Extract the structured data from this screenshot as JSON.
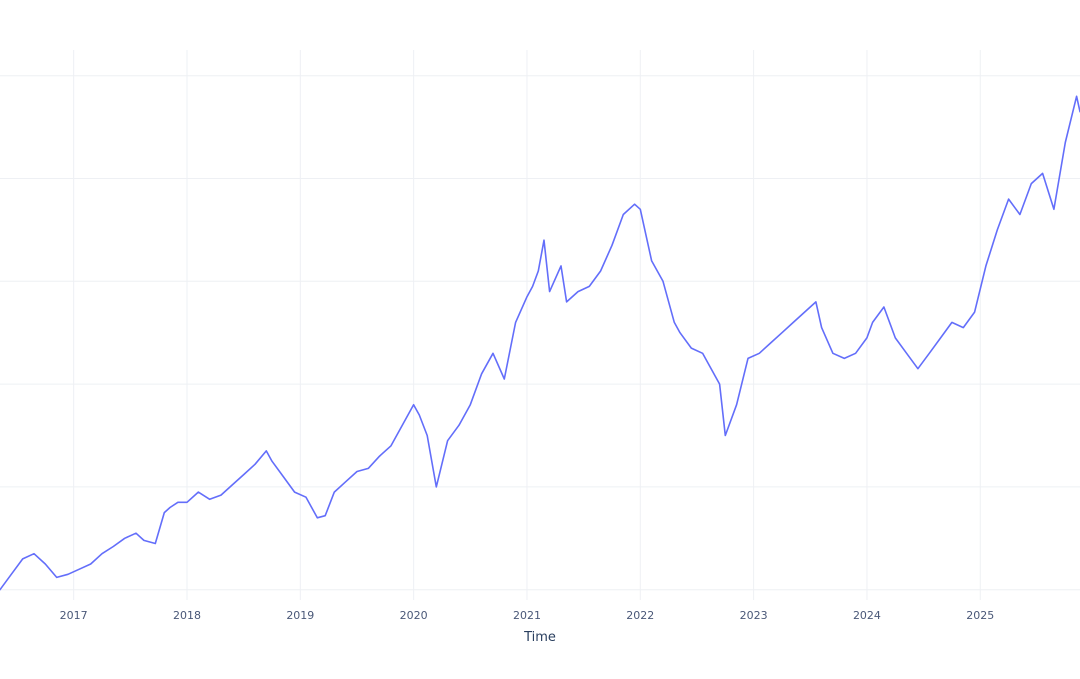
{
  "chart_data": {
    "type": "line",
    "title": "",
    "xlabel": "Time",
    "ylabel": "",
    "x_tick_labels": [
      "2017",
      "2018",
      "2019",
      "2020",
      "2021",
      "2022",
      "2023",
      "2024",
      "2025"
    ],
    "x_ticks": [
      2017,
      2018,
      2019,
      2020,
      2021,
      2022,
      2023,
      2024,
      2025
    ],
    "xlim": [
      2016.35,
      2025.88
    ],
    "ylim": [
      -0.1,
      5.25
    ],
    "y_gridlines": [
      0,
      1,
      2,
      3,
      4,
      5
    ],
    "grid": true,
    "legend": "none",
    "colors": {
      "line": "#636efa",
      "grid": "#eef0f4",
      "tick_text": "#4a5878",
      "axis_title": "#2a3f5f"
    },
    "series": [
      {
        "x": [
          2016.35,
          2016.45,
          2016.55,
          2016.65,
          2016.75,
          2016.85,
          2016.95,
          2017.05,
          2017.15,
          2017.25,
          2017.35,
          2017.45,
          2017.55,
          2017.62,
          2017.72,
          2017.8,
          2017.85,
          2017.92,
          2018.0,
          2018.1,
          2018.2,
          2018.3,
          2018.4,
          2018.5,
          2018.6,
          2018.7,
          2018.75,
          2018.85,
          2018.95,
          2019.05,
          2019.15,
          2019.22,
          2019.3,
          2019.4,
          2019.5,
          2019.6,
          2019.7,
          2019.8,
          2019.9,
          2020.0,
          2020.05,
          2020.12,
          2020.2,
          2020.3,
          2020.4,
          2020.5,
          2020.6,
          2020.7,
          2020.8,
          2020.9,
          2021.0,
          2021.05,
          2021.1,
          2021.15,
          2021.2,
          2021.3,
          2021.35,
          2021.45,
          2021.55,
          2021.65,
          2021.75,
          2021.85,
          2021.95,
          2022.0,
          2022.1,
          2022.2,
          2022.3,
          2022.35,
          2022.45,
          2022.55,
          2022.6,
          2022.7,
          2022.75,
          2022.85,
          2022.95,
          2023.05,
          2023.15,
          2023.25,
          2023.35,
          2023.45,
          2023.55,
          2023.6,
          2023.7,
          2023.8,
          2023.9,
          2024.0,
          2024.05,
          2024.15,
          2024.25,
          2024.35,
          2024.45,
          2024.55,
          2024.65,
          2024.75,
          2024.85,
          2024.95,
          2025.05,
          2025.15,
          2025.25,
          2025.35,
          2025.45,
          2025.55,
          2025.65,
          2025.75,
          2025.85,
          2025.88
        ],
        "y": [
          0.0,
          0.15,
          0.3,
          0.35,
          0.25,
          0.12,
          0.15,
          0.2,
          0.25,
          0.35,
          0.42,
          0.5,
          0.55,
          0.48,
          0.45,
          0.75,
          0.8,
          0.85,
          0.85,
          0.95,
          0.88,
          0.92,
          1.02,
          1.12,
          1.22,
          1.35,
          1.25,
          1.1,
          0.95,
          0.9,
          0.7,
          0.72,
          0.95,
          1.05,
          1.15,
          1.18,
          1.3,
          1.4,
          1.6,
          1.8,
          1.7,
          1.5,
          1.0,
          1.45,
          1.6,
          1.8,
          2.1,
          2.3,
          2.05,
          2.6,
          2.85,
          2.95,
          3.1,
          3.4,
          2.9,
          3.15,
          2.8,
          2.9,
          2.95,
          3.1,
          3.35,
          3.65,
          3.75,
          3.7,
          3.2,
          3.0,
          2.6,
          2.5,
          2.35,
          2.3,
          2.2,
          2.0,
          1.5,
          1.8,
          2.25,
          2.3,
          2.4,
          2.5,
          2.6,
          2.7,
          2.8,
          2.55,
          2.3,
          2.25,
          2.3,
          2.45,
          2.6,
          2.75,
          2.45,
          2.3,
          2.15,
          2.3,
          2.45,
          2.6,
          2.55,
          2.7,
          3.15,
          3.5,
          3.8,
          3.65,
          3.95,
          4.05,
          3.7,
          4.35,
          4.8,
          4.65
        ]
      }
    ]
  }
}
